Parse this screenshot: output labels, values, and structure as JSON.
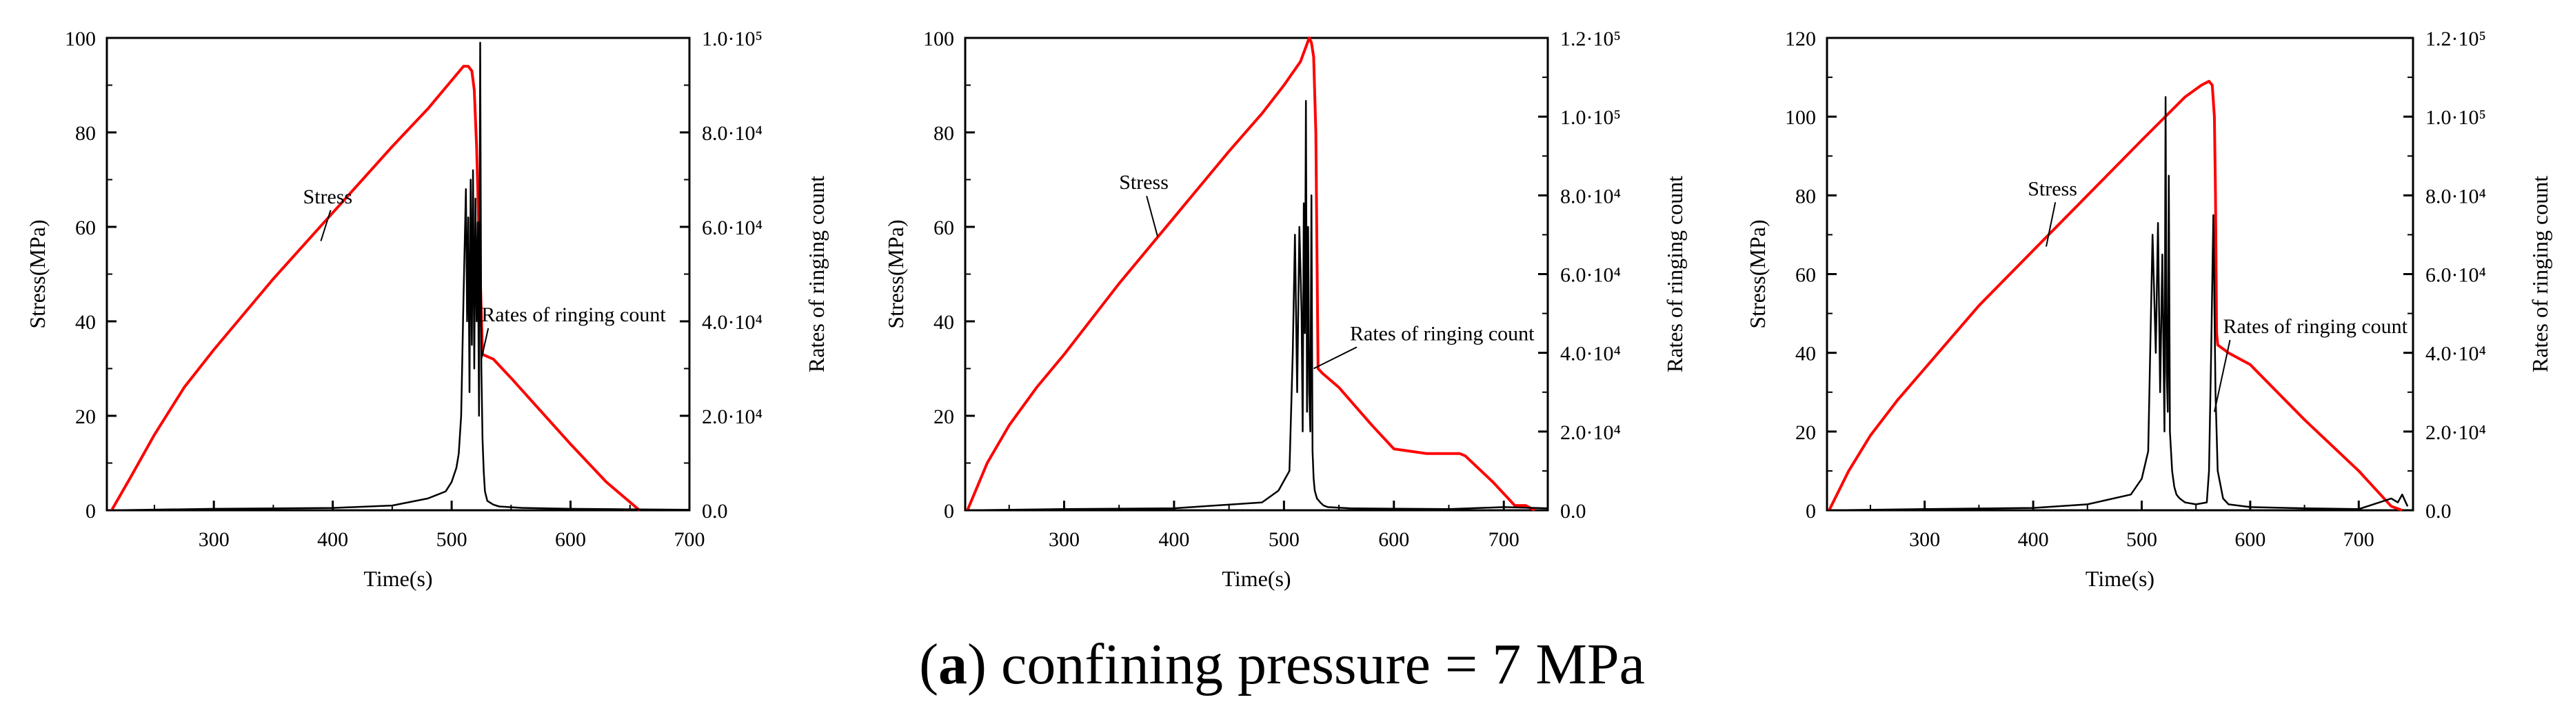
{
  "caption": {
    "label": "a",
    "open_paren": "(",
    "close_paren": ")",
    "text": " confining pressure = 7 MPa"
  },
  "colors": {
    "stress": "#ff0000",
    "ringing": "#000000",
    "axis": "#000000"
  },
  "chart_data": [
    {
      "type": "line",
      "xlabel": "Time(s)",
      "ylabel": "Stress(MPa)",
      "y2label": "Rates of ringing count",
      "xlim": [
        210,
        700
      ],
      "ylim": [
        0,
        100
      ],
      "y2lim": [
        0,
        100000
      ],
      "xticks": [
        300,
        400,
        500,
        600,
        700
      ],
      "yticks": [
        0,
        20,
        40,
        60,
        80,
        100
      ],
      "y2ticks": [
        "0.0",
        "2.0·10⁴",
        "4.0·10⁴",
        "6.0·10⁴",
        "8.0·10⁴",
        "1.0·10⁵"
      ],
      "annotations": [
        {
          "text": "Stress",
          "at": [
            375,
            65
          ],
          "target": [
            390,
            57
          ]
        },
        {
          "text": "Rates of ringing count",
          "at": [
            525,
            40
          ],
          "target": [
            525,
            32
          ]
        }
      ],
      "series": [
        {
          "name": "Stress",
          "axis": "left",
          "x": [
            214,
            230,
            250,
            275,
            300,
            350,
            400,
            450,
            480,
            500,
            510,
            514,
            517,
            519,
            521,
            523,
            526,
            535,
            550,
            600,
            630,
            658
          ],
          "y": [
            0,
            7,
            16,
            26,
            34,
            49,
            63,
            77,
            85,
            91,
            94,
            94,
            93,
            89,
            77,
            58,
            33,
            32,
            28,
            14,
            6,
            0
          ]
        },
        {
          "name": "Rates of ringing count",
          "axis": "right",
          "x": [
            214,
            300,
            400,
            450,
            480,
            495,
            500,
            504,
            506,
            508,
            510,
            512,
            513,
            514,
            515,
            516,
            517,
            518,
            519,
            520,
            521,
            522,
            523,
            524,
            525,
            526,
            527,
            528,
            530,
            535,
            540,
            560,
            600,
            650,
            700
          ],
          "y": [
            0,
            300,
            500,
            1000,
            2500,
            4000,
            6000,
            9000,
            12000,
            20000,
            45000,
            68000,
            40000,
            62000,
            25000,
            70000,
            35000,
            72000,
            30000,
            66000,
            40000,
            61000,
            20000,
            99000,
            30000,
            15000,
            8000,
            4000,
            2000,
            1200,
            800,
            500,
            300,
            200,
            100
          ]
        }
      ]
    },
    {
      "type": "line",
      "xlabel": "Time(s)",
      "ylabel": "Stress(MPa)",
      "y2label": "Rates of ringing count",
      "xlim": [
        210,
        740
      ],
      "ylim": [
        0,
        100
      ],
      "y2lim": [
        0,
        120000
      ],
      "xticks": [
        300,
        400,
        500,
        600,
        700
      ],
      "yticks": [
        0,
        20,
        40,
        60,
        80,
        100
      ],
      "y2ticks": [
        "0.0",
        "2.0·10⁴",
        "4.0·10⁴",
        "6.0·10⁴",
        "8.0·10⁴",
        "1.0·10⁵",
        "1.2·10⁵"
      ],
      "annotations": [
        {
          "text": "Stress",
          "at": [
            350,
            68
          ],
          "target": [
            385,
            58
          ]
        },
        {
          "text": "Rates of ringing count",
          "at": [
            560,
            36
          ],
          "target": [
            527,
            30
          ]
        }
      ],
      "series": [
        {
          "name": "Stress",
          "axis": "left",
          "x": [
            212,
            230,
            250,
            275,
            300,
            350,
            400,
            450,
            480,
            500,
            515,
            523,
            525,
            527,
            529,
            531,
            535,
            550,
            580,
            600,
            630,
            660,
            665,
            690,
            710,
            715,
            720,
            728
          ],
          "y": [
            0,
            10,
            18,
            26,
            33,
            48,
            62,
            76,
            84,
            90,
            95,
            100,
            99,
            96,
            80,
            30,
            29,
            26,
            18,
            13,
            12,
            12,
            11.5,
            6,
            1,
            1,
            1,
            0
          ]
        },
        {
          "name": "Rates of ringing count",
          "axis": "right",
          "x": [
            212,
            300,
            400,
            480,
            495,
            505,
            508,
            510,
            512,
            514,
            516,
            517,
            518,
            519,
            520,
            521,
            522,
            523,
            524,
            525,
            526,
            527,
            528,
            530,
            533,
            536,
            540,
            560,
            600,
            650,
            700,
            740
          ],
          "y": [
            0,
            300,
            500,
            2000,
            5000,
            10000,
            40000,
            70000,
            30000,
            72000,
            50000,
            20000,
            78000,
            45000,
            104000,
            25000,
            72000,
            30000,
            20000,
            80000,
            15000,
            8000,
            5000,
            3000,
            2000,
            1200,
            800,
            500,
            400,
            300,
            800,
            500
          ]
        }
      ]
    },
    {
      "type": "line",
      "xlabel": "Time(s)",
      "ylabel": "Stress(MPa)",
      "y2label": "Rates of ringing count",
      "xlim": [
        210,
        750
      ],
      "ylim": [
        0,
        120
      ],
      "y2lim": [
        0,
        120000
      ],
      "xticks": [
        300,
        400,
        500,
        600,
        700
      ],
      "yticks": [
        0,
        20,
        40,
        60,
        80,
        100,
        120
      ],
      "y2ticks": [
        "0.0",
        "2.0·10⁴",
        "4.0·10⁴",
        "6.0·10⁴",
        "8.0·10⁴",
        "1.0·10⁵",
        "1.2·10⁵"
      ],
      "annotations": [
        {
          "text": "Stress",
          "at": [
            395,
            80
          ],
          "target": [
            412,
            67
          ]
        },
        {
          "text": "Rates of ringing count",
          "at": [
            575,
            45
          ],
          "target": [
            567,
            25
          ]
        }
      ],
      "series": [
        {
          "name": "Stress",
          "axis": "left",
          "x": [
            212,
            230,
            250,
            275,
            300,
            350,
            400,
            450,
            500,
            540,
            555,
            562,
            565,
            567,
            568,
            569,
            570,
            580,
            600,
            650,
            700,
            720,
            730,
            740
          ],
          "y": [
            0,
            10,
            19,
            28,
            36,
            52,
            66,
            80,
            94,
            105,
            108,
            109,
            108,
            100,
            80,
            45,
            42,
            40,
            37,
            23,
            10,
            4,
            1,
            0
          ]
        },
        {
          "name": "Rates of ringing count",
          "axis": "right",
          "x": [
            212,
            300,
            400,
            450,
            490,
            500,
            506,
            510,
            513,
            515,
            517,
            519,
            521,
            522,
            523,
            524,
            525,
            526,
            528,
            530,
            532,
            535,
            540,
            550,
            560,
            562,
            564,
            566,
            568,
            570,
            575,
            580,
            600,
            650,
            700,
            730,
            736,
            740,
            745
          ],
          "y": [
            0,
            300,
            600,
            1500,
            4000,
            8000,
            15000,
            70000,
            40000,
            73000,
            30000,
            65000,
            20000,
            105000,
            35000,
            25000,
            85000,
            20000,
            10000,
            6000,
            4000,
            3000,
            2000,
            1500,
            2000,
            10000,
            40000,
            75000,
            30000,
            10000,
            3000,
            1500,
            800,
            500,
            300,
            3000,
            2000,
            4000,
            1000
          ]
        }
      ]
    }
  ]
}
